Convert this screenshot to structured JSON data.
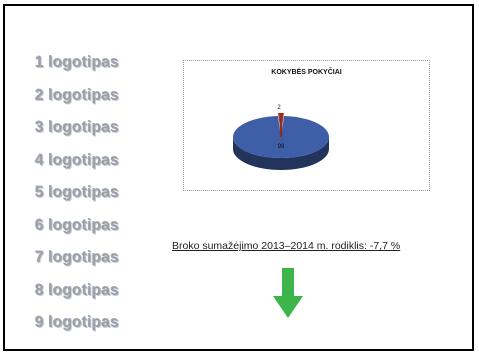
{
  "logos": [
    "1 logotipas",
    "2 logotipas",
    "3 logotipas",
    "4 logotipas",
    "5 logotipas",
    "6 logotipas",
    "7 logotipas",
    "8 logotipas",
    "9 logotipas"
  ],
  "chart_data": {
    "type": "pie",
    "title": "KOKYBĖS POKYČIAI",
    "categories": [
      "",
      ""
    ],
    "values": [
      98,
      2
    ],
    "labels": [
      "98",
      "2"
    ],
    "colors": [
      "#3f5ea8",
      "#b23a2a"
    ]
  },
  "caption": "Broko sumažėjimo 2013–2014 m. rodiklis: -7,7 %",
  "arrow": {
    "direction": "down",
    "color": "#3bb54a"
  }
}
